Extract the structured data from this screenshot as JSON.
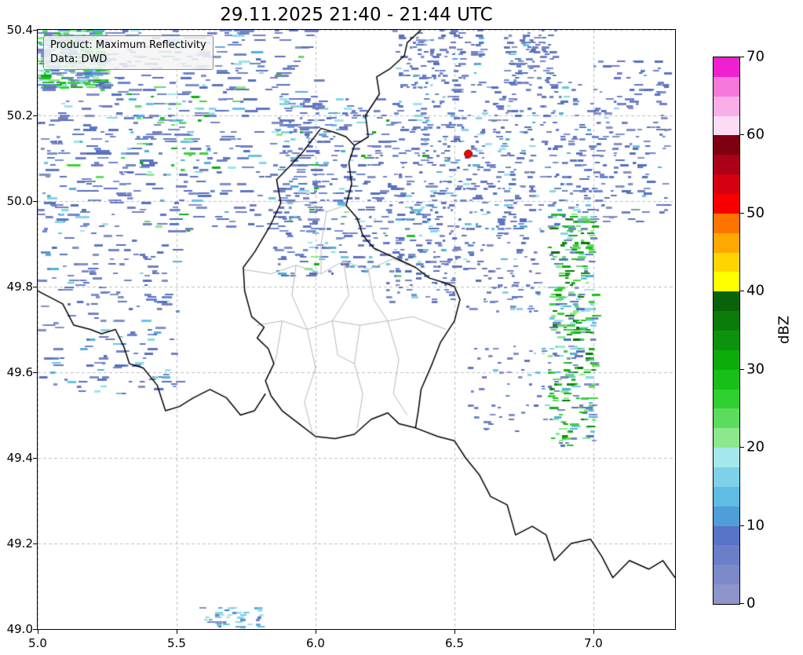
{
  "title": "29.11.2025 21:40 - 21:44 UTC",
  "info_box": {
    "line1": "Product: Maximum Reflectivity",
    "line2": "Data: DWD"
  },
  "axes": {
    "lon_min": 5.0,
    "lon_max": 7.294,
    "lat_min": 49.0,
    "lat_max": 50.4,
    "x_ticks": [
      {
        "v": 5.0,
        "label": "5.0"
      },
      {
        "v": 5.5,
        "label": "5.5"
      },
      {
        "v": 6.0,
        "label": "6.0"
      },
      {
        "v": 6.5,
        "label": "6.5"
      },
      {
        "v": 7.0,
        "label": "7.0"
      }
    ],
    "y_ticks": [
      {
        "v": 49.0,
        "label": "49.0"
      },
      {
        "v": 49.2,
        "label": "49.2"
      },
      {
        "v": 49.4,
        "label": "49.4"
      },
      {
        "v": 49.6,
        "label": "49.6"
      },
      {
        "v": 49.8,
        "label": "49.8"
      },
      {
        "v": 50.0,
        "label": "50.0"
      },
      {
        "v": 50.2,
        "label": "50.2"
      },
      {
        "v": 50.4,
        "label": "50.4"
      }
    ],
    "grid_color": "#c0c0c0"
  },
  "colorbar": {
    "label": "dBZ",
    "min": 0,
    "max": 70,
    "ticks": [
      {
        "v": 0,
        "label": "0"
      },
      {
        "v": 10,
        "label": "10"
      },
      {
        "v": 20,
        "label": "20"
      },
      {
        "v": 30,
        "label": "30"
      },
      {
        "v": 40,
        "label": "40"
      },
      {
        "v": 50,
        "label": "50"
      },
      {
        "v": 60,
        "label": "60"
      },
      {
        "v": 70,
        "label": "70"
      }
    ],
    "colors_bottom_to_top": [
      "#8d95ca",
      "#7c8aca",
      "#6a7ec9",
      "#5873c8",
      "#4f9ed8",
      "#5fbce2",
      "#7dd2e8",
      "#a5e8ec",
      "#8ce88c",
      "#5cdc5c",
      "#30d030",
      "#16c016",
      "#0cac0c",
      "#0b940b",
      "#0a7c0a",
      "#096409",
      "#ffff00",
      "#ffd400",
      "#ffa800",
      "#ff7400",
      "#f80000",
      "#d40010",
      "#aa0018",
      "#7e0010",
      "#fcdcf4",
      "#faaee8",
      "#f678d8",
      "#f020d0"
    ]
  },
  "marker": {
    "lon": 6.55,
    "lat": 50.11,
    "color": "#ff0000",
    "edge": "#5a0000",
    "radius": 5
  },
  "map": {
    "palettes": {
      "blue": [
        "#7381c2",
        "#6175c2",
        "#8190c8",
        "#5570be",
        "#6d86cc"
      ],
      "cyan": [
        "#4fb0dc",
        "#66c4e2",
        "#84d6e8",
        "#9fe2ec"
      ],
      "green": [
        "#66da66",
        "#3ed03e",
        "#1fc01f",
        "#0fae0f",
        "#8ce88c"
      ],
      "darkGreen": [
        "#0c8c0c",
        "#0a700a"
      ]
    },
    "echo_regions": [
      {
        "name": "nw-corner",
        "lon": [
          5.0,
          5.24
        ],
        "lat": [
          50.26,
          50.4
        ],
        "count": 300,
        "dash": [
          5,
          16
        ],
        "weights": {
          "green": 0.46,
          "cyan": 0.27,
          "blue": 0.27
        }
      },
      {
        "name": "nw-field",
        "lon": [
          5.0,
          6.0
        ],
        "lat": [
          49.93,
          50.4
        ],
        "count": 560,
        "dash": [
          4,
          18
        ],
        "weights": {
          "blue": 0.86,
          "cyan": 0.1,
          "green": 0.04
        }
      },
      {
        "name": "nw-green-specks",
        "lon": [
          5.3,
          5.62
        ],
        "lat": [
          50.05,
          50.27
        ],
        "count": 45,
        "dash": [
          4,
          10
        ],
        "weights": {
          "green": 0.55,
          "cyan": 0.45
        }
      },
      {
        "name": "west-mid",
        "lon": [
          5.0,
          5.5
        ],
        "lat": [
          49.55,
          49.95
        ],
        "count": 190,
        "dash": [
          4,
          14
        ],
        "weights": {
          "blue": 0.84,
          "cyan": 0.16
        }
      },
      {
        "name": "central-north",
        "lon": [
          5.85,
          6.4
        ],
        "lat": [
          49.82,
          50.24
        ],
        "count": 430,
        "dash": [
          3,
          12
        ],
        "weights": {
          "blue": 0.78,
          "cyan": 0.18,
          "green": 0.04
        }
      },
      {
        "name": "top-center",
        "lon": [
          6.28,
          6.6
        ],
        "lat": [
          50.26,
          50.4
        ],
        "count": 130,
        "dash": [
          3,
          10
        ],
        "weights": {
          "blue": 0.9,
          "cyan": 0.1
        }
      },
      {
        "name": "east-center",
        "lon": [
          6.38,
          6.98
        ],
        "lat": [
          49.93,
          50.28
        ],
        "count": 430,
        "dash": [
          3,
          10
        ],
        "weights": {
          "blue": 0.85,
          "cyan": 0.15
        }
      },
      {
        "name": "east-center-south",
        "lon": [
          6.45,
          6.8
        ],
        "lat": [
          49.74,
          49.95
        ],
        "count": 120,
        "dash": [
          3,
          9
        ],
        "weights": {
          "blue": 0.9,
          "cyan": 0.1
        }
      },
      {
        "name": "lux-east-specks",
        "lon": [
          6.25,
          6.5
        ],
        "lat": [
          49.76,
          49.92
        ],
        "count": 60,
        "dash": [
          3,
          9
        ],
        "weights": {
          "blue": 0.9,
          "cyan": 0.1
        }
      },
      {
        "name": "top-right-blob",
        "lon": [
          6.68,
          6.86
        ],
        "lat": [
          50.27,
          50.4
        ],
        "count": 95,
        "dash": [
          3,
          10
        ],
        "weights": {
          "blue": 0.92,
          "cyan": 0.08
        }
      },
      {
        "name": "far-right",
        "lon": [
          6.98,
          7.26
        ],
        "lat": [
          49.95,
          50.33
        ],
        "count": 165,
        "dash": [
          3,
          12
        ],
        "weights": {
          "blue": 0.95,
          "cyan": 0.05
        }
      },
      {
        "name": "right-green-band",
        "lon": [
          6.84,
          7.0
        ],
        "lat": [
          49.43,
          49.97
        ],
        "count": 340,
        "dash": [
          4,
          12
        ],
        "weights": {
          "green": 0.5,
          "darkGreen": 0.14,
          "cyan": 0.12,
          "blue": 0.24
        }
      },
      {
        "name": "band-west-specks",
        "lon": [
          6.55,
          6.84
        ],
        "lat": [
          49.46,
          49.66
        ],
        "count": 55,
        "dash": [
          3,
          8
        ],
        "weights": {
          "blue": 0.8,
          "cyan": 0.2
        }
      },
      {
        "name": "south-dash",
        "lon": [
          5.58,
          5.8
        ],
        "lat": [
          49.0,
          49.05
        ],
        "count": 40,
        "dash": [
          4,
          10
        ],
        "weights": {
          "cyan": 0.6,
          "blue": 0.4
        }
      }
    ],
    "borders": {
      "country_color": "#000000",
      "region_color": "#b8b8b8",
      "countries": [
        [
          [
            6.02,
            50.17
          ],
          [
            6.07,
            50.16
          ],
          [
            6.11,
            50.15
          ],
          [
            6.14,
            50.13
          ],
          [
            6.12,
            50.09
          ],
          [
            6.13,
            50.04
          ],
          [
            6.11,
            49.99
          ],
          [
            6.15,
            49.96
          ],
          [
            6.17,
            49.92
          ],
          [
            6.21,
            49.89
          ],
          [
            6.26,
            49.875
          ],
          [
            6.31,
            49.86
          ],
          [
            6.36,
            49.845
          ],
          [
            6.41,
            49.82
          ],
          [
            6.46,
            49.81
          ],
          [
            6.5,
            49.8
          ],
          [
            6.52,
            49.77
          ],
          [
            6.5,
            49.72
          ],
          [
            6.45,
            49.67
          ],
          [
            6.42,
            49.62
          ],
          [
            6.38,
            49.56
          ],
          [
            6.37,
            49.51
          ],
          [
            6.36,
            49.47
          ],
          [
            6.3,
            49.48
          ],
          [
            6.26,
            49.505
          ],
          [
            6.2,
            49.49
          ],
          [
            6.14,
            49.455
          ],
          [
            6.07,
            49.445
          ],
          [
            6.0,
            49.45
          ],
          [
            5.94,
            49.48
          ],
          [
            5.88,
            49.51
          ],
          [
            5.84,
            49.545
          ],
          [
            5.82,
            49.58
          ],
          [
            5.85,
            49.62
          ],
          [
            5.83,
            49.655
          ],
          [
            5.79,
            49.68
          ],
          [
            5.815,
            49.705
          ],
          [
            5.77,
            49.73
          ],
          [
            5.745,
            49.79
          ],
          [
            5.74,
            49.845
          ],
          [
            5.78,
            49.88
          ],
          [
            5.835,
            49.94
          ],
          [
            5.875,
            49.995
          ],
          [
            5.86,
            50.05
          ],
          [
            5.905,
            50.08
          ],
          [
            5.955,
            50.115
          ],
          [
            6.02,
            50.17
          ]
        ],
        [
          [
            6.14,
            50.13
          ],
          [
            6.19,
            50.15
          ],
          [
            6.18,
            50.2
          ],
          [
            6.23,
            50.25
          ],
          [
            6.22,
            50.29
          ],
          [
            6.27,
            50.31
          ],
          [
            6.32,
            50.34
          ],
          [
            6.33,
            50.37
          ],
          [
            6.38,
            50.4
          ]
        ],
        [
          [
            6.36,
            49.47
          ],
          [
            6.44,
            49.45
          ],
          [
            6.5,
            49.44
          ],
          [
            6.54,
            49.4
          ],
          [
            6.59,
            49.36
          ],
          [
            6.63,
            49.31
          ],
          [
            6.69,
            49.29
          ],
          [
            6.72,
            49.22
          ],
          [
            6.78,
            49.24
          ],
          [
            6.83,
            49.22
          ],
          [
            6.86,
            49.16
          ],
          [
            6.92,
            49.2
          ],
          [
            6.99,
            49.21
          ],
          [
            7.03,
            49.17
          ],
          [
            7.07,
            49.12
          ],
          [
            7.13,
            49.16
          ],
          [
            7.2,
            49.14
          ],
          [
            7.25,
            49.16
          ],
          [
            7.294,
            49.12
          ]
        ],
        [
          [
            5.0,
            49.79
          ],
          [
            5.06,
            49.77
          ],
          [
            5.09,
            49.76
          ],
          [
            5.13,
            49.71
          ],
          [
            5.19,
            49.7
          ],
          [
            5.23,
            49.69
          ],
          [
            5.28,
            49.7
          ],
          [
            5.31,
            49.66
          ],
          [
            5.33,
            49.62
          ],
          [
            5.38,
            49.61
          ],
          [
            5.43,
            49.57
          ],
          [
            5.46,
            49.51
          ],
          [
            5.51,
            49.52
          ],
          [
            5.56,
            49.54
          ],
          [
            5.62,
            49.56
          ],
          [
            5.68,
            49.54
          ],
          [
            5.73,
            49.5
          ],
          [
            5.78,
            49.51
          ],
          [
            5.82,
            49.55
          ]
        ]
      ],
      "regions": [
        [
          [
            5.74,
            49.84
          ],
          [
            5.84,
            49.83
          ],
          [
            5.93,
            49.85
          ],
          [
            6.02,
            49.83
          ],
          [
            6.1,
            49.86
          ],
          [
            6.19,
            49.84
          ],
          [
            6.28,
            49.865
          ],
          [
            6.36,
            49.845
          ]
        ],
        [
          [
            5.79,
            49.71
          ],
          [
            5.88,
            49.72
          ],
          [
            5.97,
            49.7
          ],
          [
            6.06,
            49.72
          ],
          [
            6.16,
            49.71
          ],
          [
            6.26,
            49.72
          ],
          [
            6.35,
            49.73
          ],
          [
            6.47,
            49.7
          ]
        ],
        [
          [
            5.93,
            49.85
          ],
          [
            5.915,
            49.78
          ],
          [
            5.97,
            49.7
          ]
        ],
        [
          [
            6.1,
            49.86
          ],
          [
            6.12,
            49.78
          ],
          [
            6.06,
            49.72
          ]
        ],
        [
          [
            6.19,
            49.84
          ],
          [
            6.21,
            49.77
          ],
          [
            6.26,
            49.72
          ]
        ],
        [
          [
            5.97,
            49.7
          ],
          [
            6.0,
            49.61
          ],
          [
            5.96,
            49.53
          ],
          [
            5.99,
            49.455
          ]
        ],
        [
          [
            6.16,
            49.71
          ],
          [
            6.14,
            49.62
          ],
          [
            6.17,
            49.55
          ],
          [
            6.15,
            49.47
          ]
        ],
        [
          [
            6.26,
            49.72
          ],
          [
            6.3,
            49.63
          ],
          [
            6.28,
            49.55
          ],
          [
            6.33,
            49.5
          ]
        ],
        [
          [
            6.06,
            49.72
          ],
          [
            6.08,
            49.64
          ],
          [
            6.14,
            49.62
          ]
        ],
        [
          [
            5.88,
            49.72
          ],
          [
            5.86,
            49.64
          ],
          [
            5.85,
            49.62
          ]
        ],
        [
          [
            5.875,
            49.995
          ],
          [
            5.97,
            50.0
          ],
          [
            6.04,
            49.975
          ],
          [
            6.11,
            49.99
          ]
        ],
        [
          [
            6.04,
            49.975
          ],
          [
            6.02,
            49.9
          ],
          [
            6.02,
            49.83
          ]
        ]
      ]
    }
  }
}
